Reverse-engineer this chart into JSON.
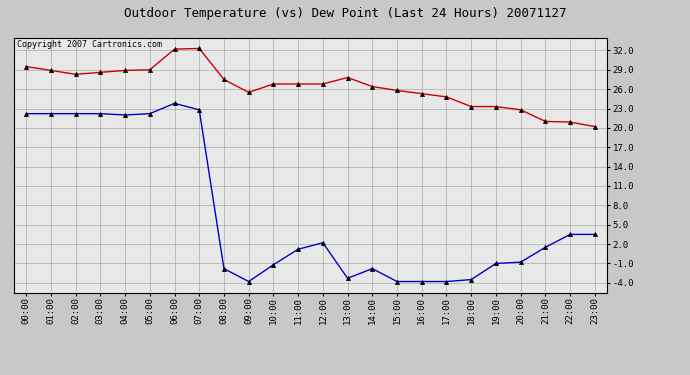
{
  "title": "Outdoor Temperature (vs) Dew Point (Last 24 Hours) 20071127",
  "copyright_text": "Copyright 2007 Cartronics.com",
  "hours": [
    "00:00",
    "01:00",
    "02:00",
    "03:00",
    "04:00",
    "05:00",
    "06:00",
    "07:00",
    "08:00",
    "09:00",
    "10:00",
    "11:00",
    "12:00",
    "13:00",
    "14:00",
    "15:00",
    "16:00",
    "17:00",
    "18:00",
    "19:00",
    "20:00",
    "21:00",
    "22:00",
    "23:00"
  ],
  "temp_red": [
    29.5,
    28.9,
    28.3,
    28.6,
    28.9,
    29.0,
    32.2,
    32.3,
    27.5,
    25.5,
    26.8,
    26.8,
    26.8,
    27.8,
    26.4,
    25.8,
    25.3,
    24.8,
    23.3,
    23.3,
    22.8,
    21.0,
    20.9,
    20.2
  ],
  "dew_blue": [
    22.2,
    22.2,
    22.2,
    22.2,
    22.0,
    22.2,
    23.8,
    22.8,
    -1.8,
    -3.8,
    -1.2,
    1.2,
    2.2,
    -3.3,
    -1.8,
    -3.8,
    -3.8,
    -3.8,
    -3.5,
    -1.0,
    -0.8,
    1.5,
    3.5,
    3.5
  ],
  "ylim": [
    -5.5,
    34.0
  ],
  "yticks": [
    -4.0,
    -1.0,
    2.0,
    5.0,
    8.0,
    11.0,
    14.0,
    17.0,
    20.0,
    23.0,
    26.0,
    29.0,
    32.0
  ],
  "bg_color": "#c8c8c8",
  "plot_bg_color": "#e8e8e8",
  "red_color": "#cc0000",
  "blue_color": "#0000cc",
  "grid_color": "#aaaaaa",
  "title_fontsize": 9,
  "tick_fontsize": 6.5,
  "copyright_fontsize": 6
}
